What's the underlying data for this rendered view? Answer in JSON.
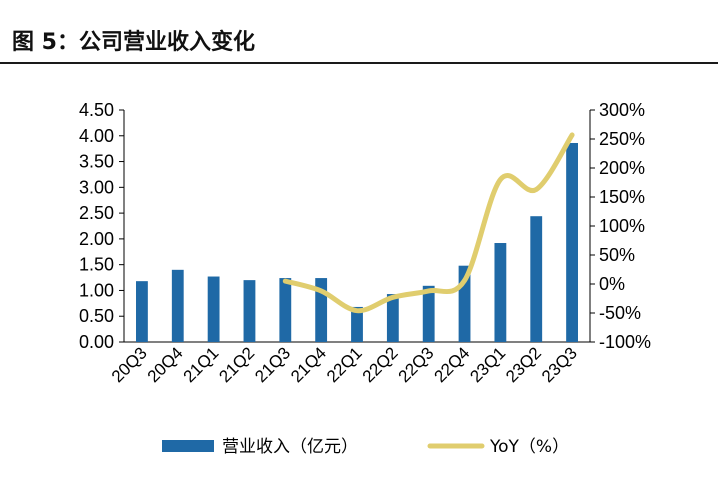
{
  "title": "图 5：公司营业收入变化",
  "chart_data": {
    "type": "bar",
    "categories": [
      "20Q3",
      "20Q4",
      "21Q1",
      "21Q2",
      "21Q3",
      "21Q4",
      "22Q1",
      "22Q2",
      "22Q3",
      "22Q4",
      "23Q1",
      "23Q2",
      "23Q3"
    ],
    "series": [
      {
        "name": "营业收入（亿元）",
        "type": "bar",
        "axis": "left",
        "values": [
          1.18,
          1.4,
          1.27,
          1.2,
          1.24,
          1.24,
          0.68,
          0.93,
          1.09,
          1.48,
          1.92,
          2.44,
          3.86
        ]
      },
      {
        "name": "YoY（%）",
        "type": "line",
        "axis": "right",
        "x": [
          "21Q3",
          "21Q4",
          "22Q1",
          "22Q2",
          "22Q3",
          "22Q4",
          "23Q1",
          "23Q2",
          "23Q3"
        ],
        "values": [
          5,
          -12,
          -46,
          -23,
          -12,
          6,
          180,
          163,
          257
        ]
      }
    ],
    "y_left": {
      "min": 0,
      "max": 4.5,
      "step": 0.5,
      "ticks": [
        "0.00",
        "0.50",
        "1.00",
        "1.50",
        "2.00",
        "2.50",
        "3.00",
        "3.50",
        "4.00",
        "4.50"
      ]
    },
    "y_right": {
      "min": -100,
      "max": 300,
      "step": 50,
      "ticks": [
        "-100%",
        "-50%",
        "0%",
        "50%",
        "100%",
        "150%",
        "200%",
        "250%",
        "300%"
      ]
    },
    "legend_position": "bottom",
    "colors": {
      "bar": "#1f69a6",
      "line": "#e0cd6e",
      "axis": "#000000"
    }
  }
}
